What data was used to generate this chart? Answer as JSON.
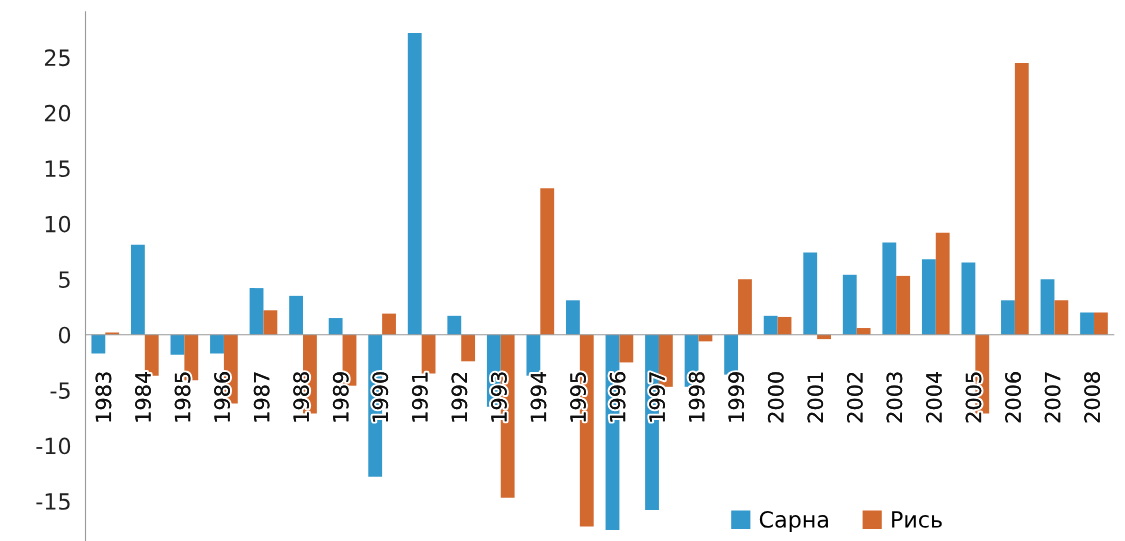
{
  "chart_data": {
    "type": "bar",
    "categories": [
      "1983",
      "1984",
      "1985",
      "1986",
      "1987",
      "1988",
      "1989",
      "1990",
      "1991",
      "1992",
      "1993",
      "1994",
      "1995",
      "1996",
      "1997",
      "1998",
      "1999",
      "2000",
      "2001",
      "2002",
      "2003",
      "2004",
      "2005",
      "2006",
      "2007",
      "2008"
    ],
    "series": [
      {
        "name": "Сарна",
        "color": "#3399cc",
        "values": [
          -1.7,
          8.1,
          -1.8,
          -1.7,
          4.2,
          3.5,
          1.5,
          -12.8,
          27.2,
          1.7,
          -6.5,
          -3.7,
          3.1,
          -17.6,
          -15.8,
          -4.7,
          -3.6,
          1.7,
          7.4,
          5.4,
          8.3,
          6.8,
          6.5,
          3.1,
          5.0,
          2.0
        ]
      },
      {
        "name": "Рись",
        "color": "#d2692f",
        "values": [
          0.2,
          -3.7,
          -4.1,
          -6.2,
          2.2,
          -7.1,
          -4.6,
          1.9,
          -3.5,
          -2.4,
          -14.7,
          13.2,
          -17.3,
          -2.5,
          -4.7,
          -0.6,
          5.0,
          1.6,
          -0.4,
          0.6,
          5.3,
          9.2,
          -7.1,
          24.5,
          3.1,
          2.0
        ]
      }
    ],
    "ylim": [
      -18.6,
      29.1
    ],
    "yticks": [
      -15,
      -10,
      -5,
      0,
      5,
      10,
      15,
      20,
      25
    ],
    "grid": false,
    "legend": "bottom right"
  }
}
